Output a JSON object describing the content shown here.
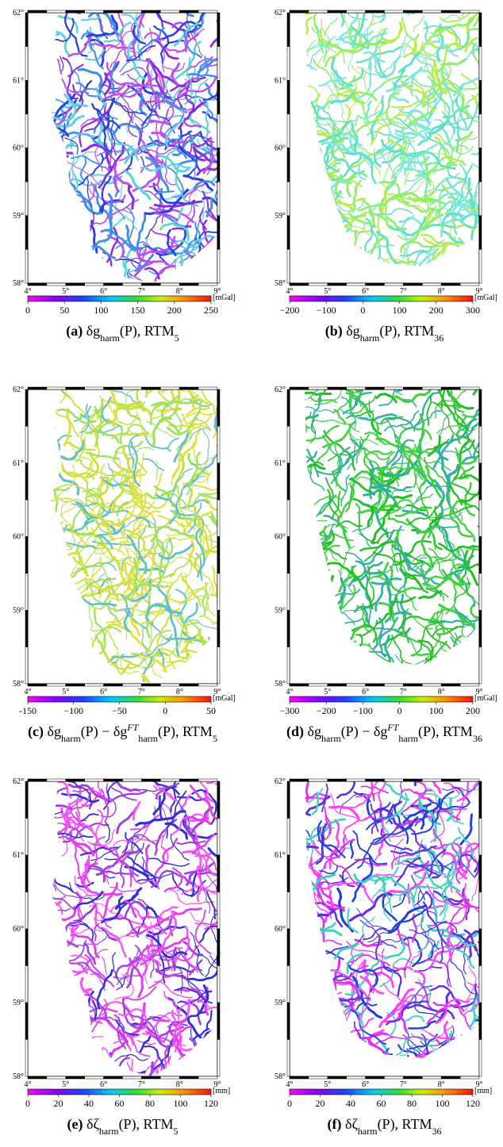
{
  "map": {
    "lonlim": [
      4,
      9
    ],
    "latlim": [
      58,
      62
    ],
    "lon_ticks": [
      {
        "value": 4,
        "label": "4°"
      },
      {
        "value": 5,
        "label": "5°"
      },
      {
        "value": 6,
        "label": "6°"
      },
      {
        "value": 7,
        "label": "7°"
      },
      {
        "value": 8,
        "label": "8°"
      },
      {
        "value": 9,
        "label": "9°"
      }
    ],
    "lat_ticks": [
      {
        "value": 62,
        "label": "62°"
      },
      {
        "value": 61,
        "label": "61°"
      },
      {
        "value": 60,
        "label": "60°"
      },
      {
        "value": 59,
        "label": "59°"
      },
      {
        "value": 58,
        "label": "58°"
      }
    ]
  },
  "panels": [
    {
      "colorbar": {
        "lim": [
          0,
          250
        ],
        "ticks": [
          0,
          50,
          100,
          150,
          200,
          250
        ],
        "unit": "[mGal]"
      },
      "coast": "wide",
      "river_colors": [
        "#8a2be2",
        "#2a3fe0",
        "#c04de8",
        "#3f8fe8",
        "#5fd0e0"
      ],
      "caption": [
        {
          "text": "(a)",
          "style": "bold"
        },
        {
          "text": " δg",
          "style": "normal"
        },
        {
          "text": "harm",
          "style": "sub"
        },
        {
          "text": "(P), RTM",
          "style": "normal"
        },
        {
          "text": "5",
          "style": "sub"
        }
      ]
    },
    {
      "colorbar": {
        "lim": [
          -200,
          300
        ],
        "ticks": [
          {
            "value": -200,
            "label": "−200"
          },
          {
            "value": -100,
            "label": "−100"
          },
          0,
          100,
          200,
          300
        ],
        "unit": "[mGal]"
      },
      "coast": "narrow",
      "river_colors": [
        "#7fe8d8",
        "#8ef06a",
        "#b8ec50",
        "#60e0c8"
      ],
      "caption": [
        {
          "text": "(b)",
          "style": "bold"
        },
        {
          "text": " δg",
          "style": "normal"
        },
        {
          "text": "harm",
          "style": "sub"
        },
        {
          "text": "(P), RTM",
          "style": "normal"
        },
        {
          "text": "36",
          "style": "sub"
        }
      ]
    },
    {
      "colorbar": {
        "lim": [
          -150,
          50
        ],
        "ticks": [
          {
            "value": -150,
            "label": "-150"
          },
          {
            "value": -100,
            "label": "−100"
          },
          {
            "value": -50,
            "label": "−50"
          },
          0,
          50
        ],
        "unit": "[mGal]"
      },
      "coast": "wide",
      "river_colors": [
        "#c8e040",
        "#9ee060",
        "#60c0c8",
        "#e0e040"
      ],
      "caption": [
        {
          "text": "(c)",
          "style": "bold"
        },
        {
          "text": " δg",
          "style": "normal"
        },
        {
          "text": "harm",
          "style": "sub"
        },
        {
          "text": "(P) − δg",
          "style": "normal"
        },
        {
          "text": "FT",
          "style": "sup"
        },
        {
          "text": "harm",
          "style": "sub"
        },
        {
          "text": "(P), RTM",
          "style": "normal"
        },
        {
          "text": "5",
          "style": "sub"
        }
      ]
    },
    {
      "colorbar": {
        "lim": [
          -300,
          200
        ],
        "ticks": [
          {
            "value": -300,
            "label": "−300"
          },
          {
            "value": -200,
            "label": "−200"
          },
          {
            "value": -100,
            "label": "−100"
          },
          0,
          100,
          200
        ],
        "unit": "[mGal]"
      },
      "coast": "narrow",
      "river_colors": [
        "#20c020",
        "#40d040",
        "#30b0a0"
      ],
      "caption": [
        {
          "text": "(d)",
          "style": "bold"
        },
        {
          "text": " δg",
          "style": "normal"
        },
        {
          "text": "harm",
          "style": "sub"
        },
        {
          "text": "(P) − δg",
          "style": "normal"
        },
        {
          "text": "FT",
          "style": "sup"
        },
        {
          "text": "harm",
          "style": "sub"
        },
        {
          "text": "(P), RTM",
          "style": "normal"
        },
        {
          "text": "36",
          "style": "sub"
        }
      ]
    },
    {
      "colorbar": {
        "lim": [
          0,
          120
        ],
        "ticks": [
          0,
          20,
          40,
          60,
          80,
          100,
          120
        ],
        "unit": "[mm]"
      },
      "coast": "wide",
      "river_colors": [
        "#e040e8",
        "#a040e0",
        "#3030d0",
        "#ff50ff"
      ],
      "caption": [
        {
          "text": "(e)",
          "style": "bold"
        },
        {
          "text": " δζ",
          "style": "normal"
        },
        {
          "text": "harm",
          "style": "sub"
        },
        {
          "text": "(P), RTM",
          "style": "normal"
        },
        {
          "text": "5",
          "style": "sub"
        }
      ]
    },
    {
      "colorbar": {
        "lim": [
          0,
          120
        ],
        "ticks": [
          0,
          20,
          40,
          60,
          80,
          100,
          120
        ],
        "unit": "[mm]"
      },
      "coast": "narrow",
      "river_colors": [
        "#ff40ff",
        "#e030f0",
        "#6030e0",
        "#2040d8",
        "#40d0c0"
      ],
      "caption": [
        {
          "text": "(f)",
          "style": "bold"
        },
        {
          "text": " δζ",
          "style": "normal"
        },
        {
          "text": "harm",
          "style": "sub"
        },
        {
          "text": "(P), RTM",
          "style": "normal"
        },
        {
          "text": "36",
          "style": "sub"
        }
      ]
    }
  ]
}
